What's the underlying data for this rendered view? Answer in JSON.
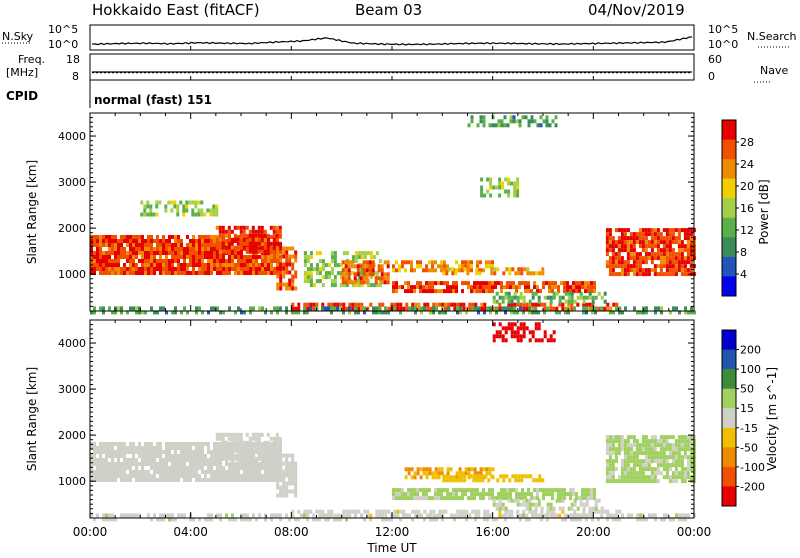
{
  "header": {
    "title": "Hokkaido East (fitACF)",
    "beam": "Beam 03",
    "date": "04/Nov/2019"
  },
  "nsky": {
    "label": "N.Sky",
    "ticks": [
      "10^5",
      "10^0"
    ],
    "right_ticks": [
      "10^5",
      "10^0"
    ],
    "right_label": "N.Search"
  },
  "freq": {
    "label_line1": "Freq.",
    "label_line2": "[MHz]",
    "ticks": [
      "18",
      "8"
    ],
    "right_ticks": [
      "60",
      "0"
    ],
    "right_label": "Nave"
  },
  "cpid": {
    "label": "CPID",
    "text": "normal (fast) 151"
  },
  "xaxis": {
    "label": "Time UT",
    "ticks": [
      "00:00",
      "04:00",
      "08:00",
      "12:00",
      "16:00",
      "20:00",
      "00:00"
    ]
  },
  "chart_data": [
    {
      "type": "heatmap",
      "name": "power",
      "ylabel": "Slant Range [km]",
      "yticks": [
        1000,
        2000,
        3000,
        4000
      ],
      "ylim": [
        200,
        4500
      ],
      "xlim_hours": [
        0,
        24
      ],
      "colorbar": {
        "label": "Power [dB]",
        "ticks": [
          "28",
          "24",
          "20",
          "16",
          "12",
          "8",
          "4"
        ],
        "range": [
          0,
          30
        ],
        "colors": [
          "#0000ee",
          "#2255bb",
          "#3b8c5a",
          "#59b04a",
          "#a3cf4a",
          "#f0d000",
          "#f08a00",
          "#f05000",
          "#e60000"
        ]
      },
      "regions": [
        {
          "t": [
            0.0,
            7.6
          ],
          "r": [
            1000,
            1850
          ],
          "level": 26,
          "scatter": 0.55
        },
        {
          "t": [
            5.0,
            7.6
          ],
          "r": [
            1500,
            2050
          ],
          "level": 27,
          "scatter": 0.45
        },
        {
          "t": [
            7.4,
            8.2
          ],
          "r": [
            650,
            1600
          ],
          "level": 25,
          "scatter": 0.4
        },
        {
          "t": [
            8.5,
            11.5
          ],
          "r": [
            800,
            1500
          ],
          "level": 14,
          "scatter": 0.2
        },
        {
          "t": [
            10.0,
            11.8
          ],
          "r": [
            800,
            1300
          ],
          "level": 24,
          "scatter": 0.35
        },
        {
          "t": [
            12.0,
            16.0
          ],
          "r": [
            1100,
            1300
          ],
          "level": 22,
          "scatter": 0.35
        },
        {
          "t": [
            12.0,
            20.0
          ],
          "r": [
            650,
            850
          ],
          "level": 25,
          "scatter": 0.45
        },
        {
          "t": [
            14.0,
            18.0
          ],
          "r": [
            1000,
            1150
          ],
          "level": 20,
          "scatter": 0.3
        },
        {
          "t": [
            8.0,
            21.0
          ],
          "r": [
            250,
            380
          ],
          "level": 26,
          "scatter": 0.3
        },
        {
          "t": [
            16.0,
            20.5
          ],
          "r": [
            380,
            620
          ],
          "level": 12,
          "scatter": 0.2
        },
        {
          "t": [
            20.5,
            24.0
          ],
          "r": [
            1000,
            2000
          ],
          "level": 26,
          "scatter": 0.5
        },
        {
          "t": [
            2.0,
            5.0
          ],
          "r": [
            2300,
            2600
          ],
          "level": 14,
          "scatter": 0.12
        },
        {
          "t": [
            15.0,
            18.5
          ],
          "r": [
            4200,
            4450
          ],
          "level": 10,
          "scatter": 0.1
        },
        {
          "t": [
            15.5,
            17.0
          ],
          "r": [
            2700,
            3100
          ],
          "level": 14,
          "scatter": 0.12
        },
        {
          "t": [
            0.0,
            24.0
          ],
          "r": [
            200,
            300
          ],
          "level": 10,
          "scatter": 0.15
        }
      ]
    },
    {
      "type": "heatmap",
      "name": "velocity",
      "ylabel": "Slant Range [km]",
      "yticks": [
        1000,
        2000,
        3000,
        4000
      ],
      "ylim": [
        200,
        4500
      ],
      "xlim_hours": [
        0,
        24
      ],
      "colorbar": {
        "label": "Velocity [m s^-1]",
        "ticks": [
          "200",
          "100",
          "50",
          "15",
          "-15",
          "-50",
          "-100",
          "-200"
        ],
        "range": [
          -250,
          250
        ],
        "colors": [
          "#e60000",
          "#f05000",
          "#f08a00",
          "#f0c000",
          "#d0d0c8",
          "#a0d060",
          "#3b8c3b",
          "#2255aa",
          "#0000cc"
        ]
      },
      "regions": [
        {
          "t": [
            0.0,
            7.6
          ],
          "r": [
            1000,
            1850
          ],
          "level": 0,
          "scatter": 0.55
        },
        {
          "t": [
            5.0,
            7.6
          ],
          "r": [
            1500,
            2050
          ],
          "level": 0,
          "scatter": 0.4
        },
        {
          "t": [
            7.4,
            8.2
          ],
          "r": [
            650,
            1600
          ],
          "level": 0,
          "scatter": 0.35
        },
        {
          "t": [
            12.5,
            16.0
          ],
          "r": [
            1100,
            1300
          ],
          "level": -80,
          "scatter": 0.35
        },
        {
          "t": [
            12.0,
            20.0
          ],
          "r": [
            650,
            850
          ],
          "level": 40,
          "scatter": 0.45
        },
        {
          "t": [
            14.0,
            18.0
          ],
          "r": [
            1000,
            1150
          ],
          "level": -60,
          "scatter": 0.3
        },
        {
          "t": [
            8.0,
            21.0
          ],
          "r": [
            250,
            380
          ],
          "level": -10,
          "scatter": 0.3
        },
        {
          "t": [
            16.0,
            20.5
          ],
          "r": [
            380,
            620
          ],
          "level": 20,
          "scatter": 0.2
        },
        {
          "t": [
            20.5,
            24.0
          ],
          "r": [
            1000,
            2000
          ],
          "level": 40,
          "scatter": 0.5
        },
        {
          "t": [
            16.0,
            18.5
          ],
          "r": [
            4100,
            4450
          ],
          "level": -220,
          "scatter": 0.15
        },
        {
          "t": [
            0.0,
            24.0
          ],
          "r": [
            200,
            300
          ],
          "level": 10,
          "scatter": 0.15
        }
      ]
    }
  ],
  "nsky_trace": [
    0.15,
    0.18,
    0.2,
    0.17,
    0.22,
    0.2,
    0.18,
    0.25,
    0.3,
    0.45,
    0.2,
    0.16,
    0.14,
    0.15,
    0.18,
    0.2,
    0.19,
    0.17,
    0.16,
    0.18,
    0.2,
    0.22,
    0.25,
    0.5
  ],
  "freq_level_mhz": 11
}
